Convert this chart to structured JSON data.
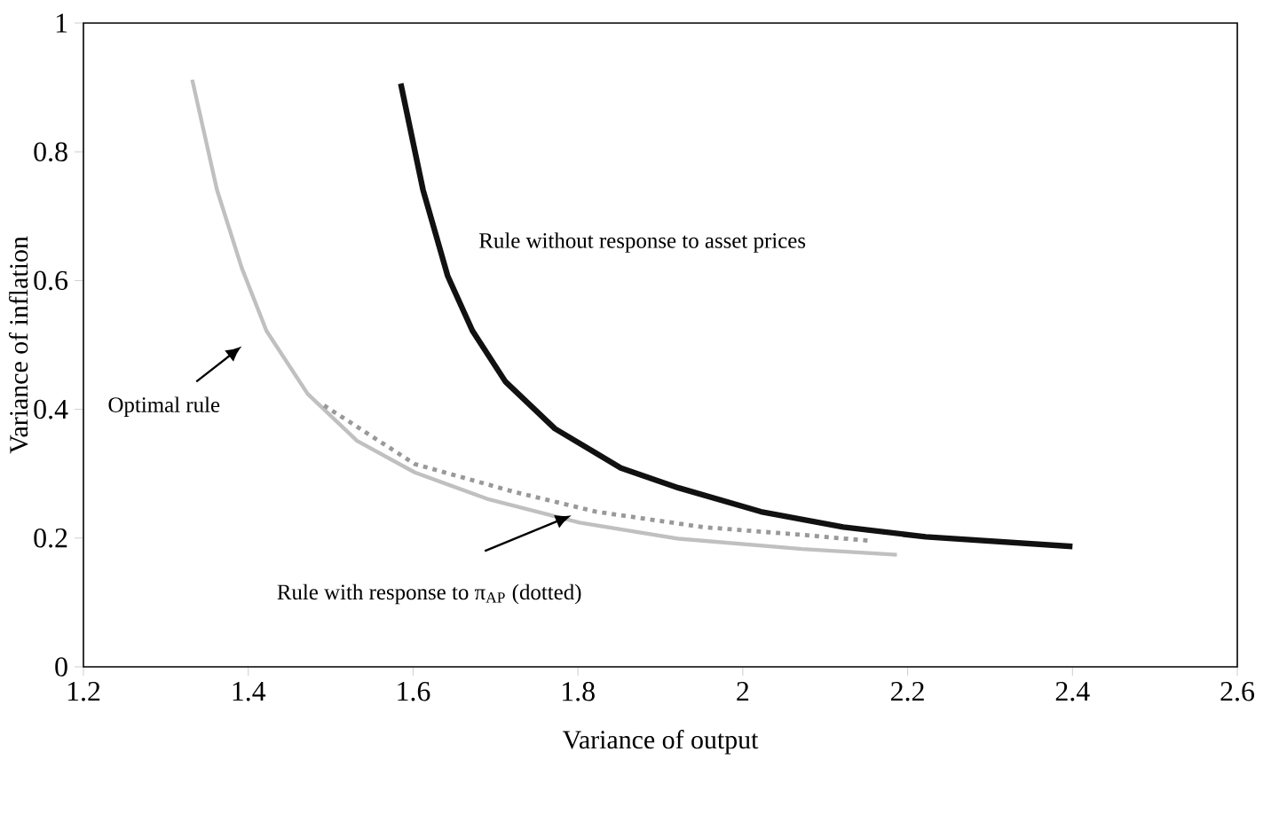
{
  "chart_data": {
    "type": "line",
    "xlabel": "Variance of output",
    "ylabel": "Variance of inflation",
    "xlim": [
      1.2,
      2.6
    ],
    "ylim": [
      0,
      1
    ],
    "xticks": [
      1.2,
      1.4,
      1.6,
      1.8,
      2,
      2.2,
      2.4,
      2.6
    ],
    "yticks": [
      0,
      0.2,
      0.4,
      0.6,
      0.8,
      1
    ],
    "grid": false,
    "marker": "none",
    "series": [
      {
        "name": "Rule without response to asset prices",
        "color": "#111111",
        "line_style": "solid",
        "x": [
          1.585,
          1.612,
          1.642,
          1.672,
          1.712,
          1.772,
          1.852,
          1.922,
          2.022,
          2.122,
          2.222,
          2.4
        ],
        "values": [
          0.906,
          0.741,
          0.607,
          0.522,
          0.443,
          0.37,
          0.309,
          0.278,
          0.241,
          0.217,
          0.202,
          0.187
        ]
      },
      {
        "color": "#c0c0c0",
        "line_style": "solid",
        "x": [
          1.332,
          1.362,
          1.392,
          1.422,
          1.472,
          1.532,
          1.602,
          1.692,
          1.802,
          1.922,
          2.072,
          2.187
        ],
        "values": [
          0.912,
          0.741,
          0.62,
          0.522,
          0.424,
          0.351,
          0.302,
          0.26,
          0.224,
          0.199,
          0.183,
          0.174
        ]
      },
      {
        "color": "#999999",
        "line_style": "dotted",
        "x": [
          1.492,
          1.602,
          1.722,
          1.822,
          1.952,
          2.072,
          2.152
        ],
        "values": [
          0.406,
          0.315,
          0.272,
          0.241,
          0.217,
          0.205,
          0.196
        ]
      }
    ],
    "annotations": [
      "Optimal rule",
      "Rule with response to π$_{AP}$ (dotted)"
    ]
  }
}
